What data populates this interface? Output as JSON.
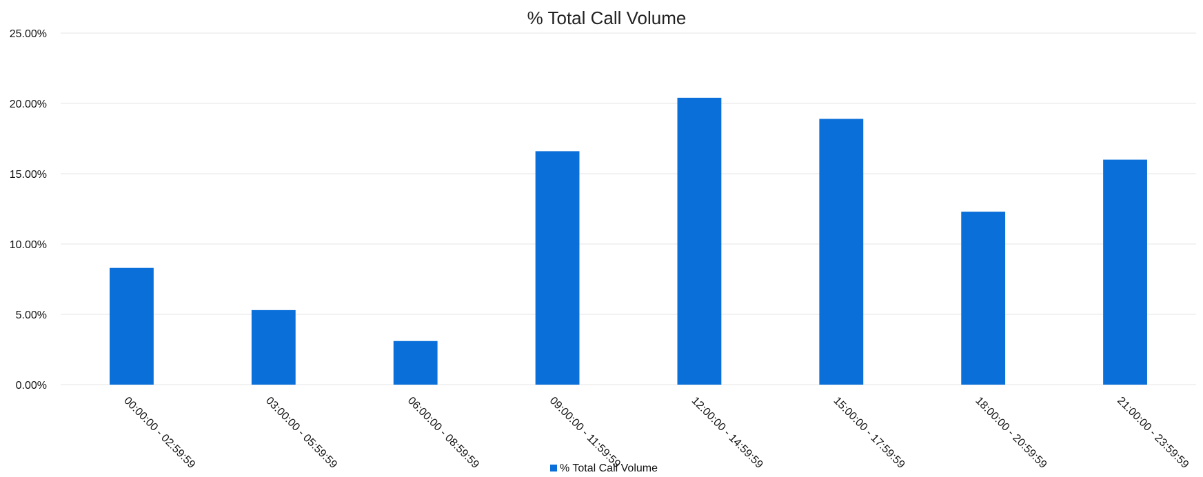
{
  "chart_data": {
    "type": "bar",
    "title": "% Total Call Volume",
    "categories": [
      "00:00:00 - 02:59:59",
      "03:00:00 - 05:59:59",
      "06:00:00 - 08:59:59",
      "09:00:00 - 11:59:59",
      "12:00:00 - 14:59:59",
      "15:00:00 - 17:59:59",
      "18:00:00 - 20:59:59",
      "21:00:00 - 23:59:59"
    ],
    "series": [
      {
        "name": "% Total Call Volume",
        "values": [
          8.3,
          5.3,
          3.1,
          16.6,
          20.4,
          18.9,
          12.3,
          16.0
        ]
      }
    ],
    "yticks": [
      "0.00%",
      "5.00%",
      "10.00%",
      "15.00%",
      "20.00%",
      "25.00%"
    ],
    "ylim": [
      0,
      25
    ],
    "grid": true,
    "legend": "bottom-center",
    "colors": {
      "bar": "#0a6fd8"
    }
  }
}
